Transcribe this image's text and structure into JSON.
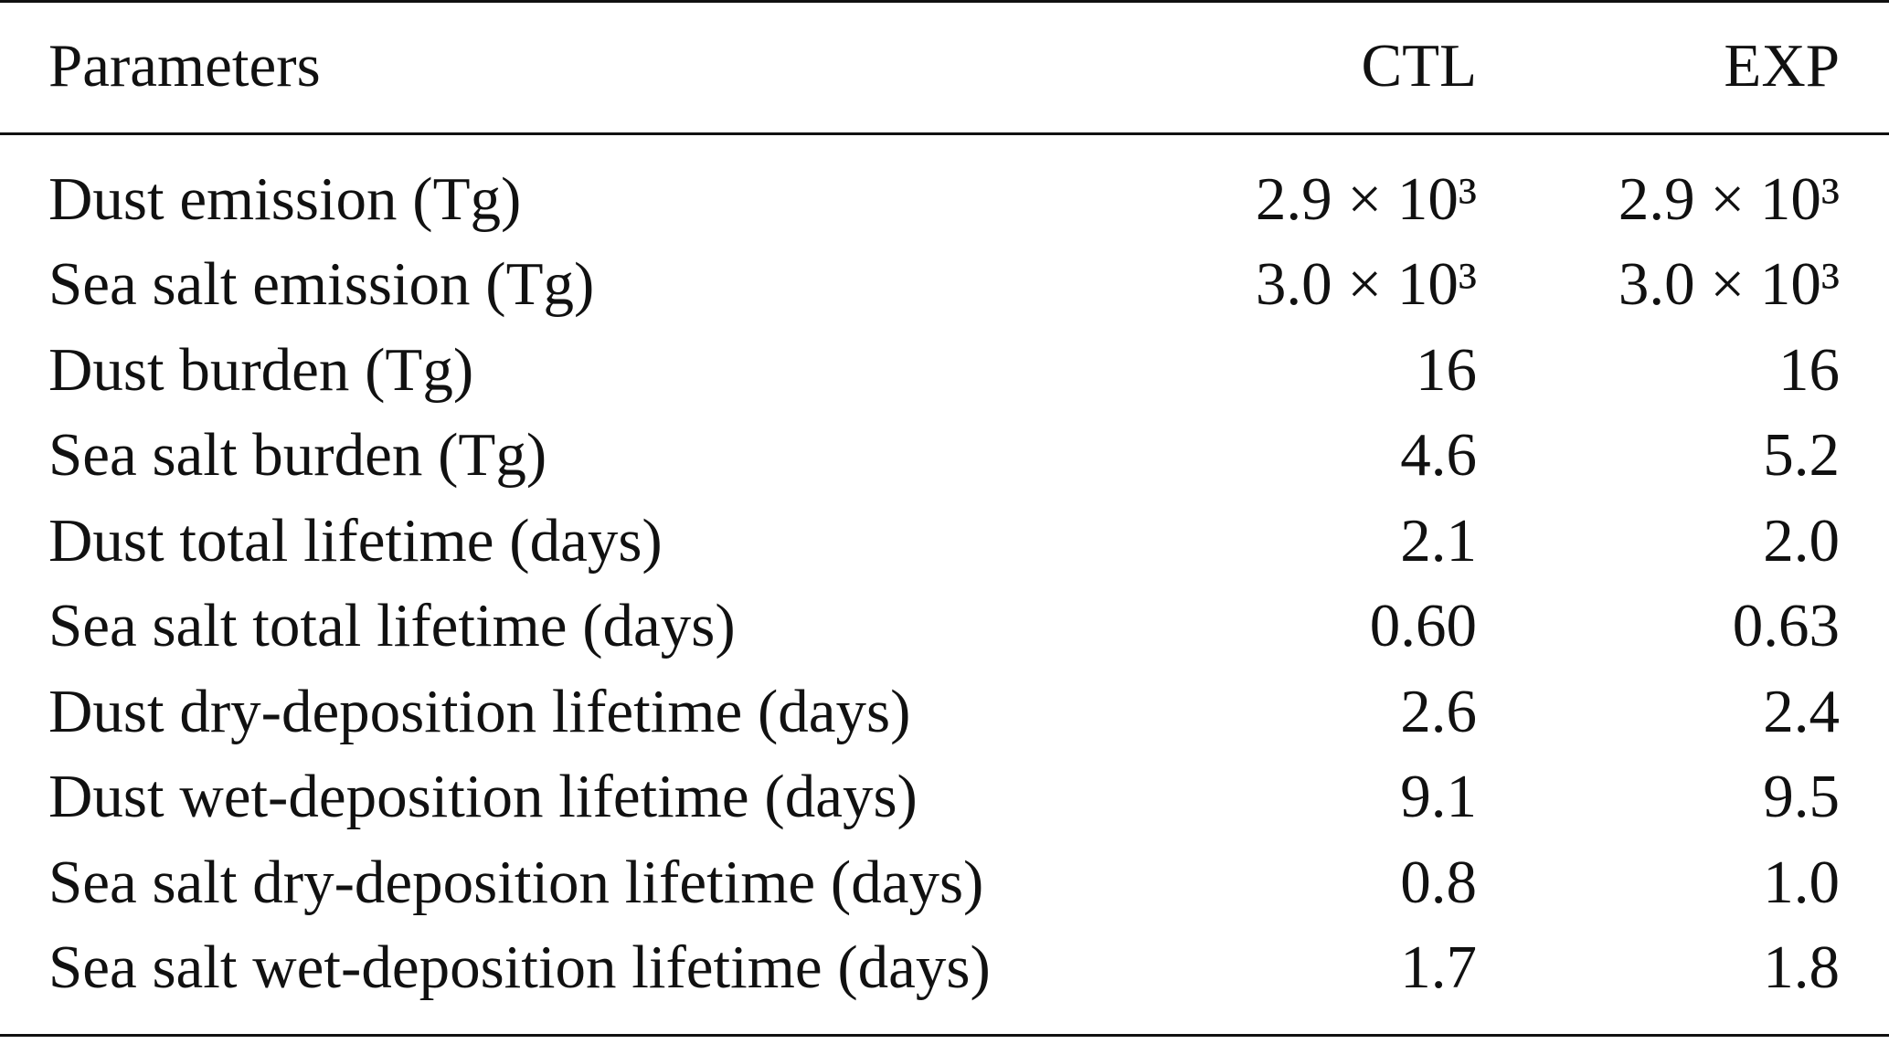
{
  "table": {
    "header": [
      "Parameters",
      "CTL",
      "EXP"
    ],
    "rows": [
      [
        "Dust emission (Tg)",
        "2.9 × 10³",
        "2.9 × 10³"
      ],
      [
        "Sea salt emission (Tg)",
        "3.0 × 10³",
        "3.0 × 10³"
      ],
      [
        "Dust burden (Tg)",
        "16",
        "16"
      ],
      [
        "Sea salt burden (Tg)",
        "4.6",
        "5.2"
      ],
      [
        "Dust total lifetime (days)",
        "2.1",
        "2.0"
      ],
      [
        "Sea salt total lifetime (days)",
        "0.60",
        "0.63"
      ],
      [
        "Dust dry-deposition lifetime (days)",
        "2.6",
        "2.4"
      ],
      [
        "Dust wet-deposition lifetime (days)",
        "9.1",
        "9.5"
      ],
      [
        "Sea salt dry-deposition lifetime (days)",
        "0.8",
        "1.0"
      ],
      [
        "Sea salt wet-deposition lifetime (days)",
        "1.7",
        "1.8"
      ]
    ]
  }
}
